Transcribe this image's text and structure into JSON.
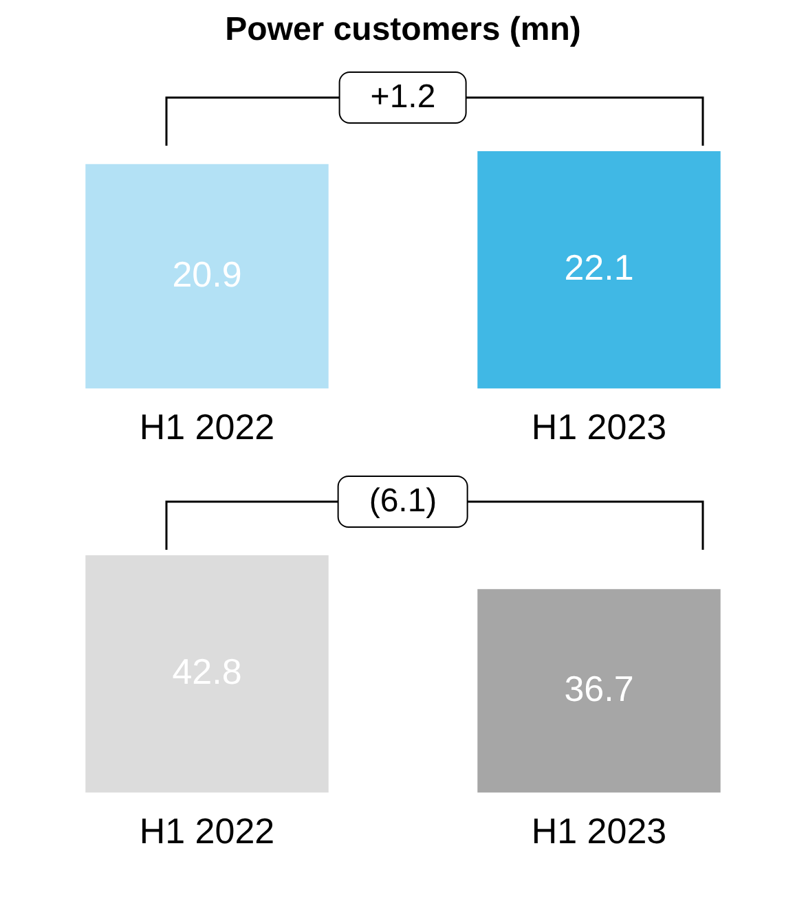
{
  "chart_data": [
    {
      "type": "bar",
      "title": "Power customers (mn)",
      "categories": [
        "H1 2022",
        "H1 2023"
      ],
      "values": [
        20.9,
        22.1
      ],
      "colors": [
        "#b3e1f5",
        "#40b8e5"
      ],
      "data_labels": true,
      "annotations": [
        "+1.2"
      ],
      "grid": false,
      "tick_labels": "x"
    },
    {
      "type": "bar",
      "categories": [
        "H1 2022",
        "H1 2023"
      ],
      "values": [
        42.8,
        36.7
      ],
      "colors": [
        "#dcdcdc",
        "#a6a6a6"
      ],
      "data_labels": true,
      "annotations": [
        "(6.1)"
      ],
      "grid": false,
      "tick_labels": "x"
    }
  ]
}
